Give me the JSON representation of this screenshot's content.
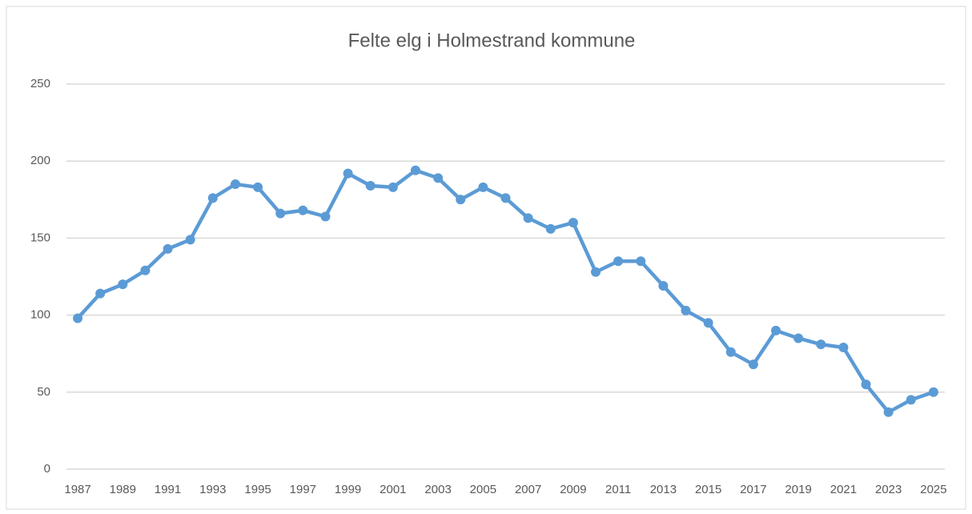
{
  "chart_data": {
    "type": "line",
    "title": "Felte elg i Holmestrand kommune",
    "categories": [
      "1987",
      null,
      "1989",
      null,
      "1991",
      null,
      "1993",
      null,
      "1995",
      null,
      "1997",
      null,
      "1999",
      null,
      "2001",
      null,
      "2003",
      null,
      "2005",
      null,
      "2007",
      null,
      "2009",
      null,
      "2011",
      null,
      "2013",
      null,
      "2015",
      null,
      "2017",
      null,
      "2019",
      null,
      "2021",
      null,
      "2023",
      null,
      "2025"
    ],
    "values": [
      98,
      114,
      120,
      129,
      143,
      149,
      176,
      185,
      183,
      166,
      168,
      164,
      192,
      184,
      183,
      194,
      189,
      175,
      183,
      176,
      163,
      156,
      160,
      128,
      135,
      135,
      119,
      103,
      95,
      76,
      68,
      90,
      85,
      81,
      79,
      55,
      37,
      45,
      50
    ],
    "color": "#5b9bd5",
    "ylim": [
      0,
      250
    ],
    "yticks": [
      0,
      50,
      100,
      150,
      200,
      250
    ],
    "grid": true
  }
}
